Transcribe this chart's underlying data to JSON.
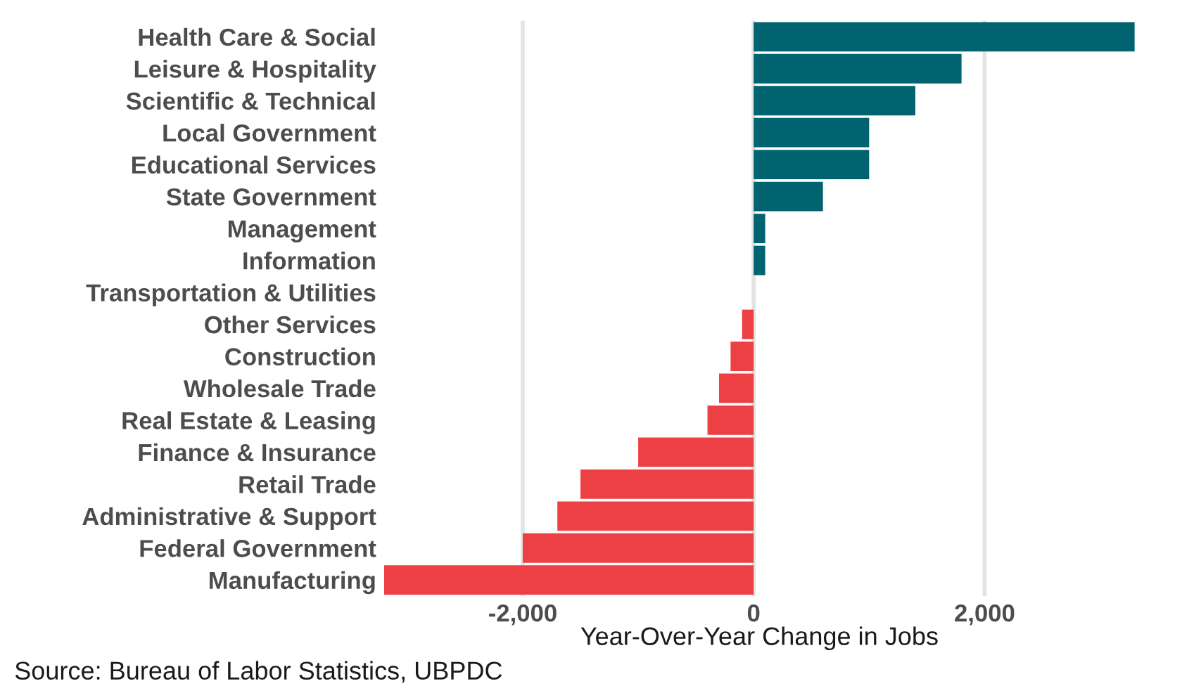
{
  "chart_data": {
    "type": "bar",
    "orientation": "horizontal",
    "categories": [
      "Health Care & Social",
      "Leisure & Hospitality",
      "Scientific & Technical",
      "Local Government",
      "Educational Services",
      "State Government",
      "Management",
      "Information",
      "Transportation & Utilities",
      "Other Services",
      "Construction",
      "Wholesale Trade",
      "Real Estate & Leasing",
      "Finance & Insurance",
      "Retail Trade",
      "Administrative & Support",
      "Federal Government",
      "Manufacturing"
    ],
    "values": [
      3300,
      1800,
      1400,
      1000,
      1000,
      600,
      100,
      100,
      0,
      -100,
      -200,
      -300,
      -400,
      -1000,
      -1500,
      -1700,
      -2000,
      -3200
    ],
    "colors": [
      "#01636f",
      "#01636f",
      "#01636f",
      "#01636f",
      "#01636f",
      "#01636f",
      "#01636f",
      "#01636f",
      "#01636f",
      "#ed4045",
      "#ed4045",
      "#ed4045",
      "#ed4045",
      "#ed4045",
      "#ed4045",
      "#ed4045",
      "#ed4045",
      "#ed4045"
    ],
    "xlim": [
      -3200,
      3300
    ],
    "xticks": [
      {
        "value": -2000,
        "label": "-2,000"
      },
      0,
      {
        "value": 2000,
        "label": "2,000"
      }
    ],
    "xlabel": "Year-Over-Year Change in Jobs",
    "grid": "x",
    "annotations": [
      "Source: Bureau of Labor Statistics, UBPDC"
    ]
  }
}
